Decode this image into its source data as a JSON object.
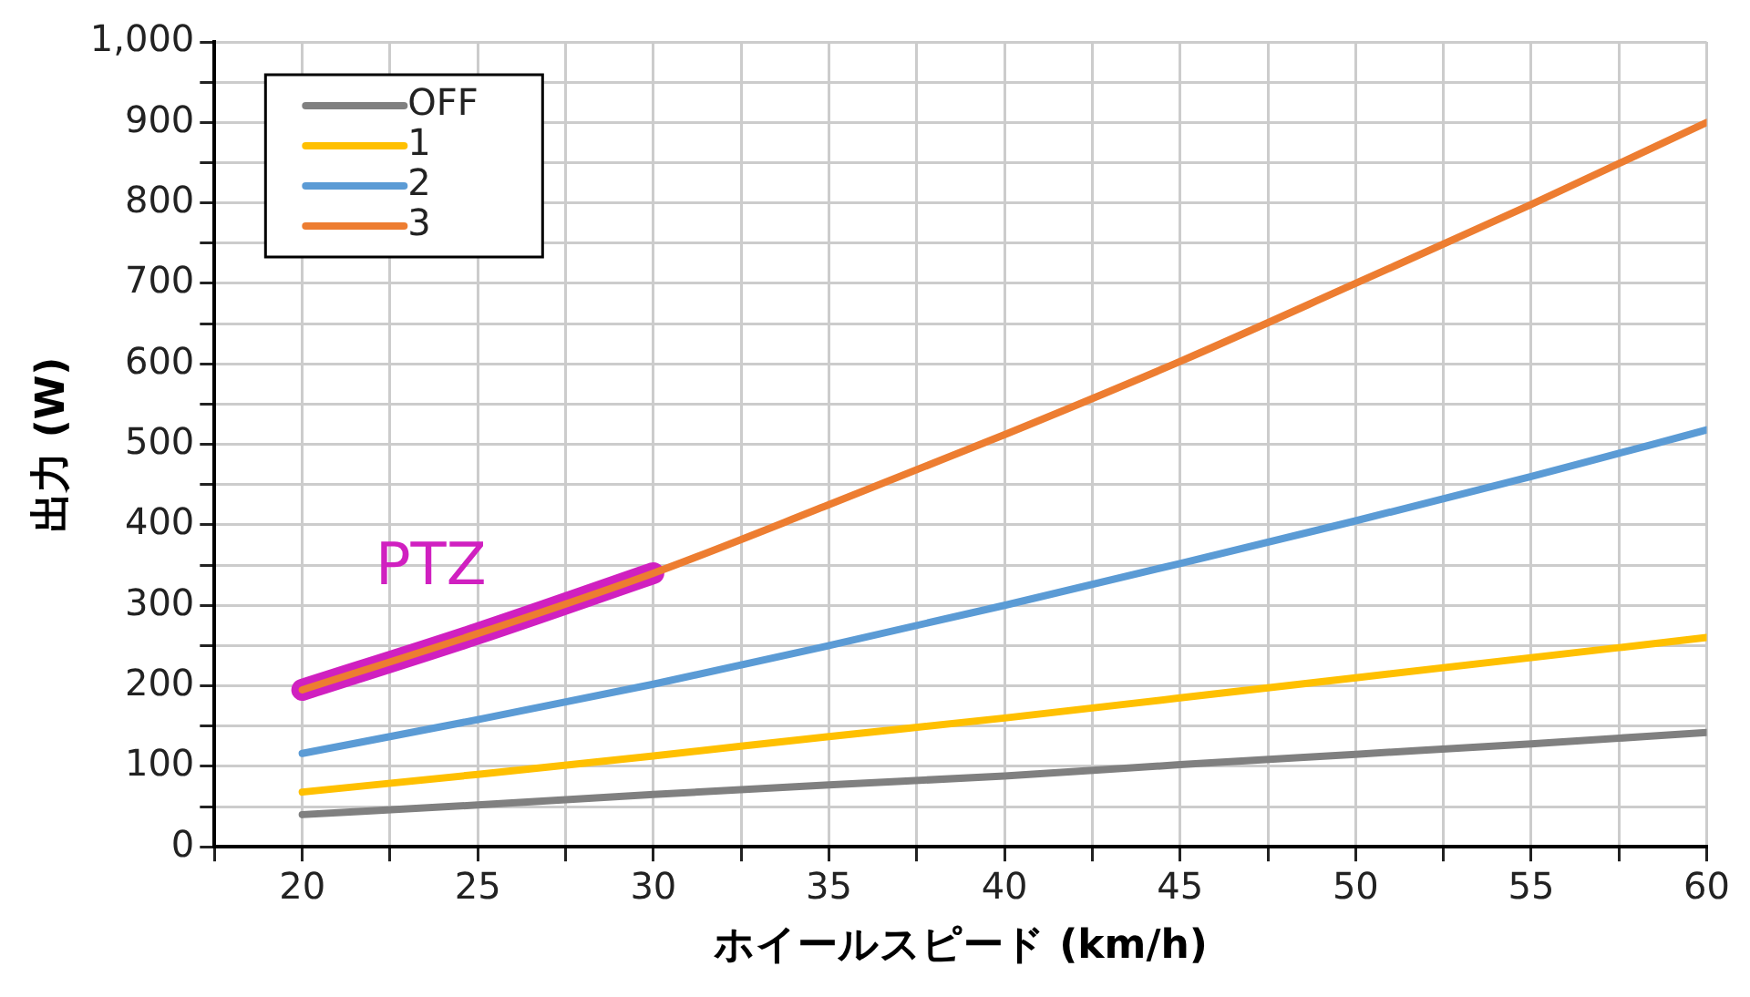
{
  "chart_data": {
    "type": "line",
    "xlabel": "ホイールスピード (km/h)",
    "ylabel": "出力 (W)",
    "x": [
      20,
      25,
      30,
      35,
      40,
      45,
      50,
      55,
      60
    ],
    "series": [
      {
        "name": "OFF",
        "color": "#808080",
        "values": [
          40,
          52,
          65,
          77,
          88,
          102,
          115,
          128,
          142
        ]
      },
      {
        "name": "1",
        "color": "#ffc000",
        "values": [
          68,
          90,
          113,
          137,
          160,
          185,
          210,
          235,
          260
        ]
      },
      {
        "name": "2",
        "color": "#5b9bd5",
        "values": [
          116,
          158,
          202,
          250,
          300,
          352,
          405,
          460,
          518
        ]
      },
      {
        "name": "3",
        "color": "#ed7d31",
        "values": [
          195,
          265,
          340,
          425,
          512,
          603,
          700,
          798,
          900
        ]
      },
      {
        "color": "#d020c0",
        "x": [
          20,
          25,
          30
        ],
        "values": [
          195,
          265,
          340
        ]
      }
    ],
    "annotations": [
      "PTZ"
    ],
    "xlim": [
      17.5,
      60
    ],
    "xticks": [
      {
        "value": 17.5,
        "label": null
      },
      20,
      {
        "value": 22.5,
        "label": null
      },
      25,
      {
        "value": 27.5,
        "label": null
      },
      30,
      {
        "value": 32.5,
        "label": null
      },
      35,
      {
        "value": 37.5,
        "label": null
      },
      40,
      {
        "value": 42.5,
        "label": null
      },
      45,
      {
        "value": 47.5,
        "label": null
      },
      50,
      {
        "value": 52.5,
        "label": null
      },
      55,
      {
        "value": 57.5,
        "label": null
      },
      60
    ],
    "ylim": [
      0,
      1000
    ],
    "yticks": [
      0,
      {
        "value": 50,
        "label": null
      },
      100,
      {
        "value": 150,
        "label": null
      },
      200,
      {
        "value": 250,
        "label": null
      },
      300,
      {
        "value": 350,
        "label": null
      },
      400,
      {
        "value": 450,
        "label": null
      },
      500,
      {
        "value": 550,
        "label": null
      },
      600,
      {
        "value": 650,
        "label": null
      },
      700,
      {
        "value": 750,
        "label": null
      },
      800,
      {
        "value": 850,
        "label": null
      },
      900,
      {
        "value": 950,
        "label": null
      },
      {
        "value": 1000,
        "label": "1,000"
      }
    ],
    "grid": true,
    "legend": "top left",
    "marker": "none",
    "line_style": "solid"
  }
}
